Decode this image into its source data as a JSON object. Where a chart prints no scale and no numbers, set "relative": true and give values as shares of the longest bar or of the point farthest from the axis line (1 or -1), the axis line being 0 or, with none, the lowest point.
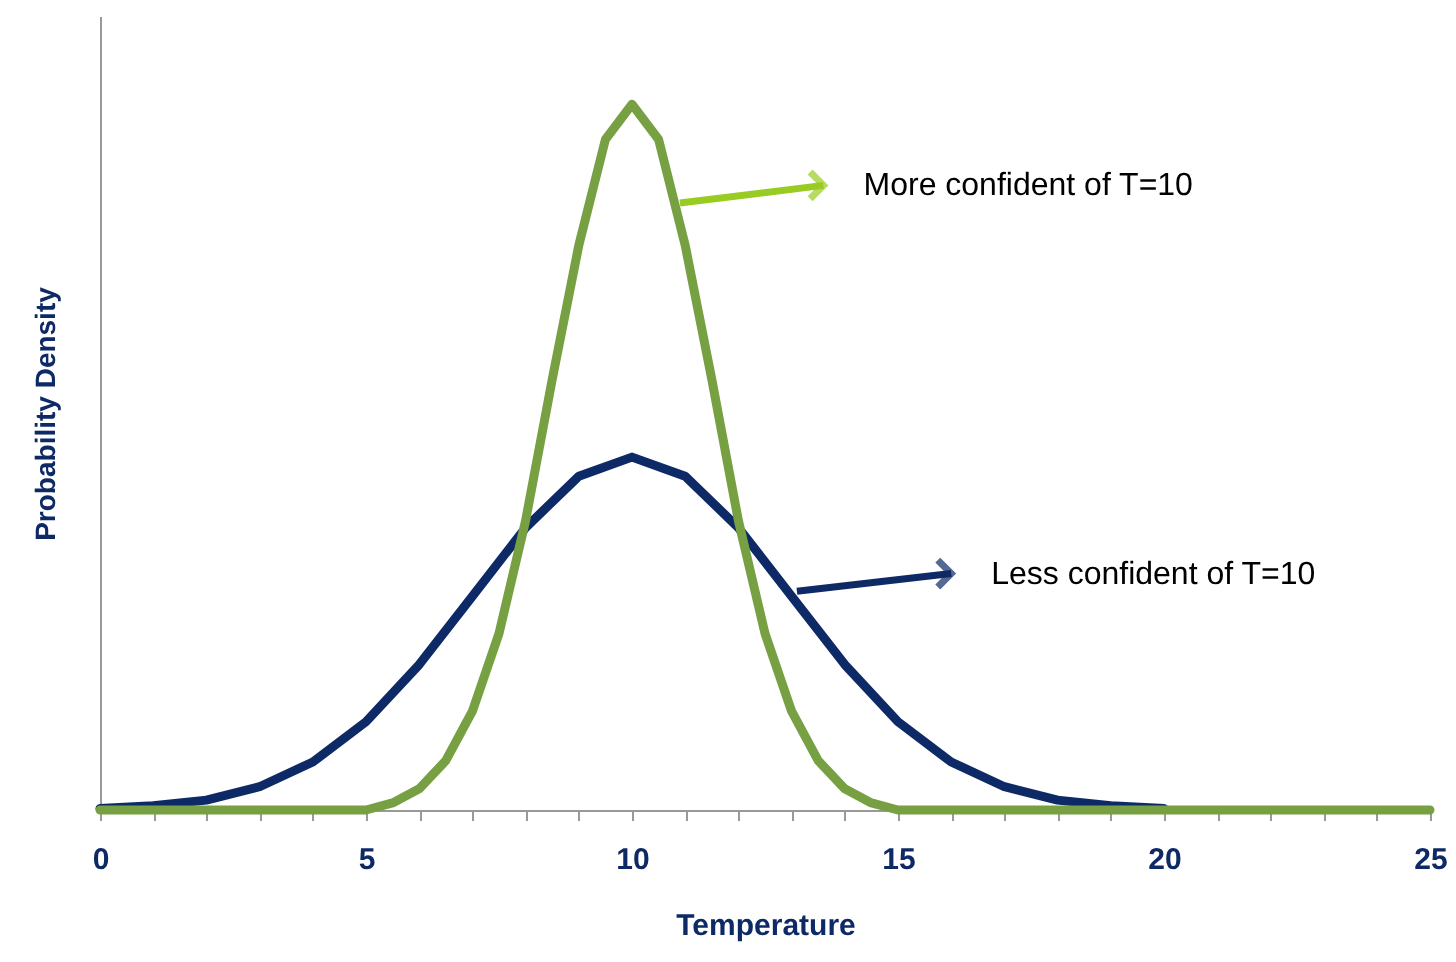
{
  "chart_data": {
    "type": "line",
    "relative": true,
    "xlabel": "Temperature",
    "ylabel": "Probability Density",
    "xlim": [
      0,
      25
    ],
    "xticks": [
      0,
      {
        "value": 1,
        "label": null
      },
      {
        "value": 2,
        "label": null
      },
      {
        "value": 3,
        "label": null
      },
      {
        "value": 4,
        "label": null
      },
      5,
      {
        "value": 6,
        "label": null
      },
      {
        "value": 7,
        "label": null
      },
      {
        "value": 8,
        "label": null
      },
      {
        "value": 9,
        "label": null
      },
      10,
      {
        "value": 11,
        "label": null
      },
      {
        "value": 12,
        "label": null
      },
      {
        "value": 13,
        "label": null
      },
      {
        "value": 14,
        "label": null
      },
      15,
      {
        "value": 16,
        "label": null
      },
      {
        "value": 17,
        "label": null
      },
      {
        "value": 18,
        "label": null
      },
      {
        "value": 19,
        "label": null
      },
      20,
      {
        "value": 21,
        "label": null
      },
      {
        "value": 22,
        "label": null
      },
      {
        "value": 23,
        "label": null
      },
      {
        "value": 24,
        "label": null
      },
      25
    ],
    "series": [
      {
        "color": "#0e2a66",
        "x": [
          0,
          1,
          2,
          3,
          4,
          5,
          6,
          7,
          8,
          9,
          10,
          11,
          12,
          13,
          14,
          15,
          16,
          17,
          18,
          19,
          20
        ],
        "values": [
          0.002,
          0.006,
          0.014,
          0.033,
          0.068,
          0.125,
          0.206,
          0.303,
          0.4,
          0.473,
          0.5,
          0.473,
          0.4,
          0.303,
          0.206,
          0.125,
          0.068,
          0.033,
          0.014,
          0.006,
          0.002
        ]
      },
      {
        "color": "#77a043",
        "x": [
          0,
          4,
          5,
          5.5,
          6,
          6.5,
          7,
          7.5,
          8,
          8.5,
          9,
          9.5,
          10,
          10.5,
          11,
          11.5,
          12,
          12.5,
          13,
          13.5,
          14,
          14.5,
          15,
          16,
          25
        ],
        "values": [
          0,
          0,
          0,
          0.01,
          0.03,
          0.07,
          0.14,
          0.25,
          0.41,
          0.61,
          0.8,
          0.95,
          1,
          0.95,
          0.8,
          0.61,
          0.41,
          0.25,
          0.14,
          0.07,
          0.03,
          0.01,
          0,
          0,
          0
        ]
      }
    ],
    "annotations": [
      {
        "text": "More confident of T=10",
        "x": 10.9,
        "y": 0.86
      },
      {
        "text": "Less confident of T=10",
        "x": 13.1,
        "y": 0.31
      }
    ],
    "grid": false,
    "legend": false,
    "marker": "none",
    "line_style": "solid"
  }
}
